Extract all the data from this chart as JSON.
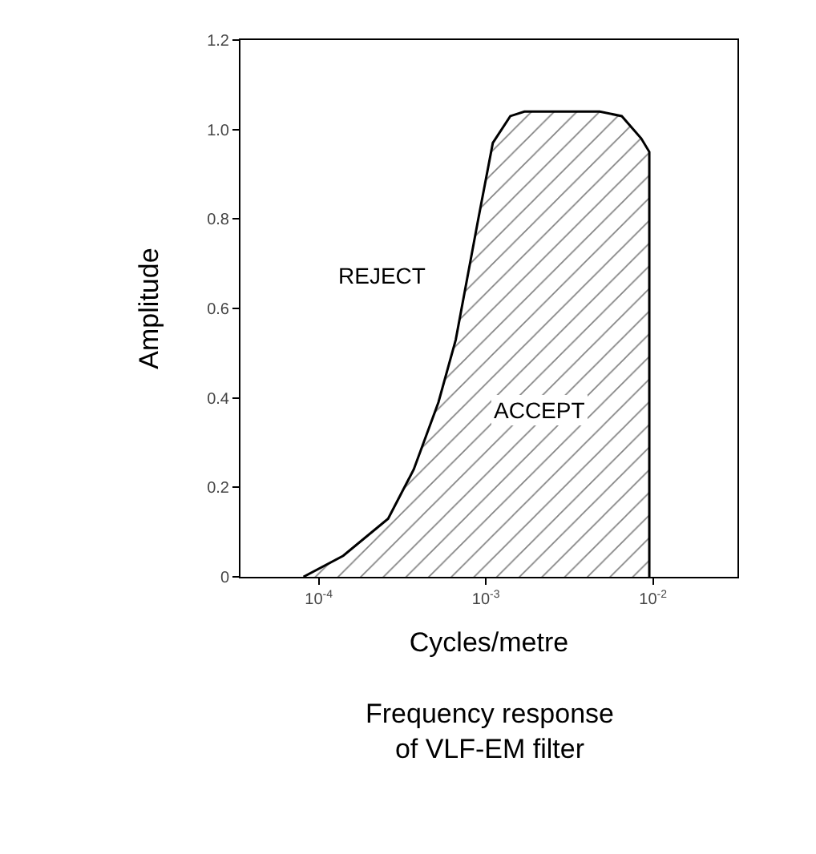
{
  "chart_data": {
    "type": "area",
    "xlabel": "Cycles/metre",
    "ylabel": "Amplitude",
    "x": [
      8.1e-05,
      0.00014,
      0.00026,
      0.00037,
      0.00052,
      0.00066,
      0.00089,
      0.0011,
      0.0014,
      0.0017,
      0.0048,
      0.0065,
      0.0085,
      0.0095,
      0.0095
    ],
    "series": [
      {
        "color": "#000000",
        "values": [
          0,
          0.047,
          0.13,
          0.24,
          0.39,
          0.53,
          0.79,
          0.97,
          1.03,
          1.04,
          1.04,
          1.03,
          0.98,
          0.95,
          0
        ]
      }
    ],
    "log": "x",
    "xlim": [
      3.4e-05,
      0.032
    ],
    "ylim": [
      0,
      1.2
    ],
    "xticks": [
      {
        "value": 0.0001,
        "label": "10$^{-4}$"
      },
      {
        "value": 0.001,
        "label": "10$^{-3}$"
      },
      {
        "value": 0.01,
        "label": "10$^{-2}$"
      }
    ],
    "yticks": [
      0,
      {
        "value": 0.2,
        "label": "0.2"
      },
      {
        "value": 0.4,
        "label": "0.4"
      },
      {
        "value": 0.6,
        "label": "0.6"
      },
      {
        "value": 0.8,
        "label": "0.8"
      },
      {
        "value": 1,
        "label": "1.0"
      },
      {
        "value": 1.2,
        "label": "1.2"
      }
    ],
    "annotations": [
      "REJECT",
      "ACCEPT",
      "Frequency response\nof VLF-EM filter"
    ]
  }
}
